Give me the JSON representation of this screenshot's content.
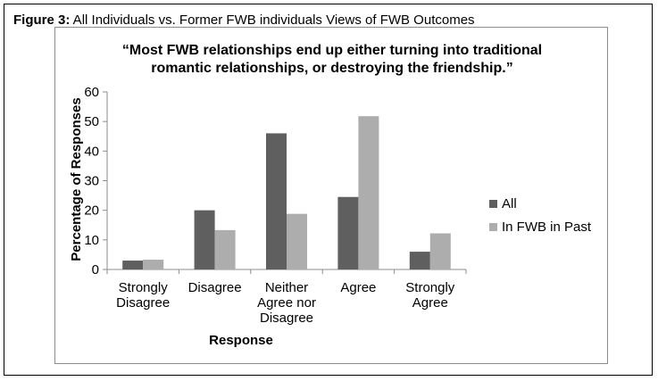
{
  "figure": {
    "label": "Figure 3:",
    "caption": " All Individuals vs. Former FWB individuals Views of FWB Outcomes"
  },
  "chart_data": {
    "type": "bar",
    "title_line1": "“Most FWB relationships end up either turning into traditional",
    "title_line2": "romantic  relationships, or destroying the friendship.”",
    "xlabel": "Response",
    "ylabel": "Percentage of Responses",
    "ylim": [
      0,
      60
    ],
    "yticks": [
      0,
      10,
      20,
      30,
      40,
      50,
      60
    ],
    "categories": [
      [
        "Strongly",
        "Disagree"
      ],
      [
        "Disagree"
      ],
      [
        "Neither",
        "Agree nor",
        "Disagree"
      ],
      [
        "Agree"
      ],
      [
        "Strongly",
        "Agree"
      ]
    ],
    "series": [
      {
        "name": "All",
        "color": "#5f5f5f",
        "values": [
          3,
          20,
          46,
          24.5,
          6
        ]
      },
      {
        "name": "In FWB in Past",
        "color": "#adadad",
        "values": [
          3.3,
          13.3,
          18.8,
          51.8,
          12.2
        ]
      }
    ],
    "legend_position": "right",
    "grid": false
  }
}
